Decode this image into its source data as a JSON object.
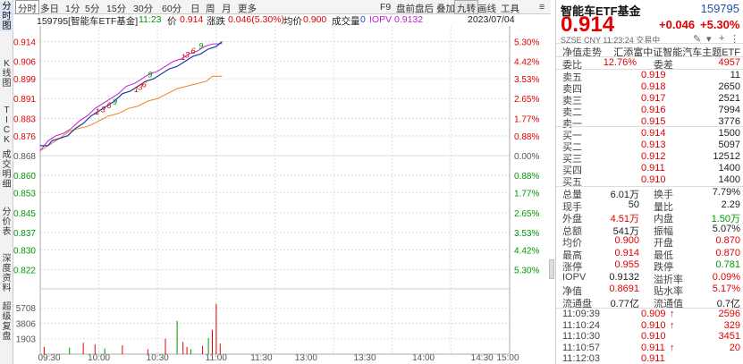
{
  "sidebar": [
    {
      "label": "分时图",
      "active": true
    },
    {
      "label": "K线图"
    },
    {
      "label": "TICK"
    },
    {
      "label": "成交明细"
    },
    {
      "label": "分价表"
    },
    {
      "label": "深度资料"
    },
    {
      "label": "超级复盘"
    }
  ],
  "toolbar": {
    "left": [
      "分时",
      "多日",
      "1分",
      "5分",
      "15分",
      "30分",
      "60分",
      "日",
      "周",
      "月",
      "更多"
    ],
    "right": [
      "F9",
      "盘前盘后",
      "叠加",
      "九转",
      "画线",
      "工具"
    ],
    "menu_glyph": "≡"
  },
  "infobar": {
    "code_name": "159795[智能车ETF基金]",
    "time": "11:23",
    "price_label": "价",
    "price": "0.914",
    "change_label": "涨跌",
    "change": "0.046(5.30%)",
    "avg_label": "均价",
    "avg": "0.900",
    "vol_label": "成交量",
    "vol": "0",
    "iopv_label": "IOPV",
    "iopv": "0.9132",
    "date": "2023/07/04"
  },
  "chart_data": {
    "type": "line",
    "prev_close": 0.868,
    "ylim": [
      0.8157,
      0.9203
    ],
    "price_ticks": [
      "0.914",
      "0.906",
      "0.899",
      "0.891",
      "0.883",
      "0.876",
      "0.868",
      "0.860",
      "0.853",
      "0.845",
      "0.837",
      "0.830",
      "0.822"
    ],
    "pct_ticks": [
      "5.30%",
      "4.42%",
      "3.53%",
      "2.65%",
      "1.77%",
      "0.88%",
      "0.00%",
      "0.88%",
      "1.77%",
      "2.65%",
      "3.53%",
      "4.42%",
      "5.30%"
    ],
    "volume_ticks": [
      "5708",
      "3806",
      "1903"
    ],
    "volume_max": 7610,
    "x_labels": [
      "09:30",
      "10:00",
      "10:30",
      "11:00",
      "11:30",
      "13:00",
      "13:30",
      "14:00",
      "14:30",
      "15:00"
    ],
    "price_series": [
      [
        0,
        0.872
      ],
      [
        4,
        0.872
      ],
      [
        6,
        0.874
      ],
      [
        10,
        0.875
      ],
      [
        14,
        0.876
      ],
      [
        18,
        0.879
      ],
      [
        22,
        0.881
      ],
      [
        26,
        0.884
      ],
      [
        30,
        0.886
      ],
      [
        34,
        0.888
      ],
      [
        38,
        0.89
      ],
      [
        42,
        0.893
      ],
      [
        46,
        0.894
      ],
      [
        50,
        0.896
      ],
      [
        54,
        0.898
      ],
      [
        58,
        0.899
      ],
      [
        62,
        0.901
      ],
      [
        66,
        0.903
      ],
      [
        70,
        0.904
      ],
      [
        74,
        0.906
      ],
      [
        78,
        0.908
      ],
      [
        82,
        0.909
      ],
      [
        86,
        0.911
      ],
      [
        90,
        0.912
      ],
      [
        93,
        0.914
      ]
    ],
    "iopv_series": [
      [
        0,
        0.87
      ],
      [
        4,
        0.874
      ],
      [
        8,
        0.876
      ],
      [
        12,
        0.877
      ],
      [
        16,
        0.879
      ],
      [
        20,
        0.882
      ],
      [
        24,
        0.884
      ],
      [
        28,
        0.887
      ],
      [
        32,
        0.889
      ],
      [
        36,
        0.891
      ],
      [
        40,
        0.893
      ],
      [
        44,
        0.896
      ],
      [
        48,
        0.897
      ],
      [
        52,
        0.899
      ],
      [
        56,
        0.901
      ],
      [
        60,
        0.902
      ],
      [
        64,
        0.904
      ],
      [
        68,
        0.906
      ],
      [
        72,
        0.907
      ],
      [
        76,
        0.909
      ],
      [
        80,
        0.91
      ],
      [
        84,
        0.912
      ],
      [
        88,
        0.913
      ],
      [
        93,
        0.9132
      ]
    ],
    "avg_series": [
      [
        0,
        0.87
      ],
      [
        6,
        0.873
      ],
      [
        10,
        0.875
      ],
      [
        15,
        0.878
      ],
      [
        20,
        0.879
      ],
      [
        25,
        0.88
      ],
      [
        30,
        0.882
      ],
      [
        35,
        0.884
      ],
      [
        40,
        0.885
      ],
      [
        45,
        0.887
      ],
      [
        50,
        0.888
      ],
      [
        55,
        0.89
      ],
      [
        60,
        0.891
      ],
      [
        65,
        0.893
      ],
      [
        70,
        0.895
      ],
      [
        75,
        0.896
      ],
      [
        80,
        0.897
      ],
      [
        85,
        0.898
      ],
      [
        88,
        0.9
      ],
      [
        93,
        0.9
      ]
    ],
    "volumes": [
      [
        2,
        900,
        "up"
      ],
      [
        15,
        800,
        "down"
      ],
      [
        22,
        1400,
        "up"
      ],
      [
        28,
        1200,
        "up"
      ],
      [
        33,
        700,
        "down"
      ],
      [
        42,
        1100,
        "up"
      ],
      [
        55,
        600,
        "up"
      ],
      [
        64,
        1900,
        "up"
      ],
      [
        70,
        4100,
        "down"
      ],
      [
        73,
        1500,
        "up"
      ],
      [
        75,
        900,
        "up"
      ],
      [
        77,
        600,
        "down"
      ],
      [
        83,
        1000,
        "up"
      ],
      [
        86,
        2000,
        "down"
      ],
      [
        88,
        3000,
        "up"
      ],
      [
        90,
        6200,
        "up"
      ],
      [
        92,
        1300,
        "up"
      ]
    ],
    "nine_turn_marks": [
      {
        "t": 28,
        "y": 0.8835,
        "text": "1",
        "color": "red"
      },
      {
        "t": 31,
        "y": 0.8845,
        "text": "3",
        "color": "red"
      },
      {
        "t": 34,
        "y": 0.886,
        "text": "6",
        "color": "red"
      },
      {
        "t": 37,
        "y": 0.8875,
        "text": "9",
        "color": "green"
      },
      {
        "t": 48,
        "y": 0.8925,
        "text": "1",
        "color": "red"
      },
      {
        "t": 50,
        "y": 0.8935,
        "text": "3",
        "color": "red"
      },
      {
        "t": 52,
        "y": 0.8945,
        "text": "6",
        "color": "red"
      },
      {
        "t": 55,
        "y": 0.8985,
        "text": "9",
        "color": "green"
      },
      {
        "t": 72,
        "y": 0.9055,
        "text": "1",
        "color": "red"
      },
      {
        "t": 74,
        "y": 0.9065,
        "text": "3",
        "color": "red"
      },
      {
        "t": 77,
        "y": 0.908,
        "text": "6",
        "color": "red"
      },
      {
        "t": 81,
        "y": 0.91,
        "text": "9",
        "color": "green"
      }
    ],
    "colors": {
      "price": "#1a3aa8",
      "iopv": "#c020d0",
      "avg": "#f08020",
      "up": "#e00000",
      "down": "#009900",
      "grid": "#dcdcdc"
    }
  },
  "quote": {
    "name": "智能车ETF基金",
    "code": "159795",
    "price": "0.914",
    "change": "+0.046",
    "pct": "+5.30%",
    "market": "SZSE",
    "currency": "CNY",
    "time": "11:23:24",
    "status": "交易中",
    "tracking_label": "净值走势",
    "tracking_name": "汇添富中证智能汽车主题ETF",
    "ratio_label": "委比",
    "ratio": "12.76%",
    "diff_label": "委差",
    "diff": "4957",
    "asks": [
      {
        "label": "卖五",
        "price": "0.919",
        "vol": "11"
      },
      {
        "label": "卖四",
        "price": "0.918",
        "vol": "2650"
      },
      {
        "label": "卖三",
        "price": "0.917",
        "vol": "2521"
      },
      {
        "label": "卖二",
        "price": "0.916",
        "vol": "7994"
      },
      {
        "label": "卖一",
        "price": "0.915",
        "vol": "3776"
      }
    ],
    "bids": [
      {
        "label": "买一",
        "price": "0.914",
        "vol": "1500"
      },
      {
        "label": "买二",
        "price": "0.913",
        "vol": "5097"
      },
      {
        "label": "买三",
        "price": "0.912",
        "vol": "12512"
      },
      {
        "label": "买四",
        "price": "0.911",
        "vol": "1400"
      },
      {
        "label": "买五",
        "price": "0.910",
        "vol": "1400"
      }
    ],
    "stats": [
      {
        "l1": "总量",
        "v1": "6.01万",
        "c1": "",
        "l2": "换手",
        "v2": "7.79%",
        "c2": ""
      },
      {
        "l1": "现手",
        "v1": "50",
        "c1": "",
        "l2": "量比",
        "v2": "2.29",
        "c2": ""
      },
      {
        "l1": "外盘",
        "v1": "4.51万",
        "c1": "up",
        "l2": "内盘",
        "v2": "1.50万",
        "c2": "down"
      },
      {
        "l1": "总额",
        "v1": "541万",
        "c1": "",
        "l2": "振幅",
        "v2": "5.07%",
        "c2": ""
      },
      {
        "l1": "均价",
        "v1": "0.900",
        "c1": "up",
        "l2": "开盘",
        "v2": "0.870",
        "c2": "up"
      },
      {
        "l1": "最高",
        "v1": "0.914",
        "c1": "up",
        "l2": "最低",
        "v2": "0.870",
        "c2": "up"
      },
      {
        "l1": "涨停",
        "v1": "0.955",
        "c1": "up",
        "l2": "跌停",
        "v2": "0.781",
        "c2": "down"
      },
      {
        "l1": "IOPV",
        "v1": "0.9132",
        "c1": "",
        "l2": "溢折率",
        "v2": "0.09%",
        "c2": "up"
      },
      {
        "l1": "净值",
        "v1": "0.8691",
        "c1": "up",
        "l2": "贴水率",
        "v2": "5.17%",
        "c2": "up"
      },
      {
        "l1": "流通盘",
        "v1": "0.77亿",
        "c1": "",
        "l2": "流通值",
        "v2": "0.7亿",
        "c2": ""
      }
    ],
    "trades": [
      {
        "time": "11:09:39",
        "price": "0.909",
        "arrow": "↑",
        "vol": "2596",
        "vc": "up"
      },
      {
        "time": "11:10:24",
        "price": "0.910",
        "arrow": "↑",
        "vol": "329",
        "vc": "up"
      },
      {
        "time": "11:10:30",
        "price": "0.910",
        "arrow": "",
        "vol": "3451",
        "vc": "up"
      },
      {
        "time": "11:10:57",
        "price": "0.911",
        "arrow": "↑",
        "vol": "20",
        "vc": "up"
      },
      {
        "time": "11:12:03",
        "price": "0.911",
        "arrow": "",
        "vol": "",
        "vc": "up"
      }
    ]
  }
}
